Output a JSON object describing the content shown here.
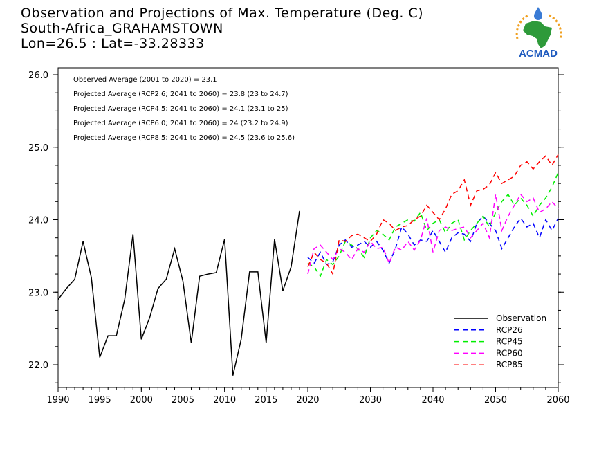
{
  "title": {
    "line1": "Observation and Projections of Max. Temperature (Deg. C)",
    "line2": "South-Africa_GRAHAMSTOWN",
    "line3": "Lon=26.5 : Lat=-33.28333"
  },
  "logo": {
    "text": "ACMAD",
    "colors": {
      "africa": "#2e9a3a",
      "sun": "#f0a020",
      "drop": "#3a7bd5",
      "text": "#1f5bbf"
    }
  },
  "averages": [
    "Observed Average (2001 to 2020) = 23.1",
    "Projected Average (RCP2.6; 2041 to 2060) = 23.8 (23 to 24.7)",
    "Projected Average (RCP4.5; 2041 to 2060) = 24.1 (23.1 to 25)",
    "Projected Average (RCP6.0; 2041 to 2060) = 24 (23.2 to 24.9)",
    "Projected Average (RCP8.5; 2041 to 2060) = 24.5 (23.6 to 25.6)"
  ],
  "chart_data": {
    "type": "line",
    "title": "Observation and Projections of Max. Temperature (Deg. C)",
    "xlabel": "",
    "ylabel": "",
    "xlim": [
      1990,
      2060
    ],
    "ylim": [
      21.7,
      26.1
    ],
    "x_ticks": [
      "1990",
      "1995",
      "2000",
      "2005",
      "2010",
      "2015",
      "2020",
      "2030",
      "2040",
      "2050",
      "2060"
    ],
    "y_ticks": [
      "22.0",
      "23.0",
      "24.0",
      "25.0",
      "26.0"
    ],
    "legend_position": "bottom-right",
    "grid": false,
    "series": [
      {
        "name": "Observation",
        "color": "#000000",
        "dashed": false,
        "x": [
          1990,
          1991,
          1992,
          1993,
          1994,
          1995,
          1996,
          1997,
          1998,
          1999,
          2000,
          2001,
          2002,
          2003,
          2004,
          2005,
          2006,
          2007,
          2008,
          2009,
          2010,
          2011,
          2012,
          2013,
          2014,
          2015,
          2016,
          2017,
          2018,
          2019
        ],
        "y": [
          22.9,
          23.05,
          23.18,
          23.7,
          23.2,
          22.1,
          22.4,
          22.4,
          22.9,
          23.8,
          22.35,
          22.65,
          23.05,
          23.18,
          23.6,
          23.15,
          22.3,
          23.22,
          23.25,
          23.27,
          23.73,
          21.85,
          22.35,
          23.28,
          23.28,
          22.3,
          23.73,
          23.02,
          23.35,
          24.12
        ]
      },
      {
        "name": "RCP26",
        "color": "#0000ff",
        "dashed": true,
        "x": [
          2020,
          2021,
          2022,
          2023,
          2024,
          2025,
          2026,
          2027,
          2028,
          2029,
          2030,
          2031,
          2032,
          2033,
          2034,
          2035,
          2036,
          2037,
          2038,
          2039,
          2040,
          2041,
          2042,
          2043,
          2044,
          2045,
          2046,
          2047,
          2048,
          2049,
          2050,
          2051,
          2052,
          2053,
          2054,
          2055,
          2056,
          2057,
          2058,
          2059,
          2060
        ],
        "y": [
          23.48,
          23.4,
          23.55,
          23.38,
          23.42,
          23.65,
          23.72,
          23.62,
          23.65,
          23.7,
          23.62,
          23.7,
          23.58,
          23.4,
          23.6,
          23.9,
          23.8,
          23.65,
          23.72,
          23.7,
          23.85,
          23.7,
          23.55,
          23.75,
          23.82,
          23.8,
          23.7,
          23.95,
          24.05,
          23.95,
          23.85,
          23.6,
          23.75,
          23.9,
          24.02,
          23.9,
          23.95,
          23.75,
          24.0,
          23.85,
          24.02
        ]
      },
      {
        "name": "RCP45",
        "color": "#00ee00",
        "dashed": true,
        "x": [
          2020,
          2021,
          2022,
          2023,
          2024,
          2025,
          2026,
          2027,
          2028,
          2029,
          2030,
          2031,
          2032,
          2033,
          2034,
          2035,
          2036,
          2037,
          2038,
          2039,
          2040,
          2041,
          2042,
          2043,
          2044,
          2045,
          2046,
          2047,
          2048,
          2049,
          2050,
          2051,
          2052,
          2053,
          2054,
          2055,
          2056,
          2057,
          2058,
          2059,
          2060
        ],
        "y": [
          23.4,
          23.35,
          23.22,
          23.45,
          23.38,
          23.5,
          23.7,
          23.65,
          23.6,
          23.48,
          23.75,
          23.85,
          23.8,
          23.72,
          23.9,
          23.95,
          24.0,
          23.98,
          24.1,
          23.85,
          23.95,
          24.0,
          23.82,
          23.95,
          24.0,
          23.72,
          23.85,
          23.95,
          24.05,
          23.9,
          24.1,
          24.25,
          24.35,
          24.2,
          24.3,
          24.2,
          24.05,
          24.2,
          24.3,
          24.45,
          24.65
        ]
      },
      {
        "name": "RCP60",
        "color": "#ff00ff",
        "dashed": true,
        "x": [
          2020,
          2021,
          2022,
          2023,
          2024,
          2025,
          2026,
          2027,
          2028,
          2029,
          2030,
          2031,
          2032,
          2033,
          2034,
          2035,
          2036,
          2037,
          2038,
          2039,
          2040,
          2041,
          2042,
          2043,
          2044,
          2045,
          2046,
          2047,
          2048,
          2049,
          2050,
          2051,
          2052,
          2053,
          2054,
          2055,
          2056,
          2057,
          2058,
          2059,
          2060
        ],
        "y": [
          23.25,
          23.6,
          23.65,
          23.55,
          23.45,
          23.6,
          23.55,
          23.45,
          23.6,
          23.55,
          23.7,
          23.6,
          23.62,
          23.4,
          23.62,
          23.58,
          23.7,
          23.58,
          23.72,
          24.02,
          23.55,
          23.85,
          23.9,
          23.85,
          23.88,
          23.9,
          23.75,
          23.85,
          23.95,
          23.75,
          24.35,
          23.85,
          24.05,
          24.2,
          24.35,
          24.25,
          24.3,
          24.1,
          24.15,
          24.25,
          24.15
        ]
      },
      {
        "name": "RCP85",
        "color": "#ff0000",
        "dashed": true,
        "x": [
          2020,
          2021,
          2022,
          2023,
          2024,
          2025,
          2026,
          2027,
          2028,
          2029,
          2030,
          2031,
          2032,
          2033,
          2034,
          2035,
          2036,
          2037,
          2038,
          2039,
          2040,
          2041,
          2042,
          2043,
          2044,
          2045,
          2046,
          2047,
          2048,
          2049,
          2050,
          2051,
          2052,
          2053,
          2054,
          2055,
          2056,
          2057,
          2058,
          2059,
          2060
        ],
        "y": [
          23.35,
          23.55,
          23.45,
          23.4,
          23.25,
          23.72,
          23.7,
          23.78,
          23.8,
          23.75,
          23.7,
          23.8,
          24.0,
          23.95,
          23.85,
          23.9,
          23.92,
          24.0,
          24.05,
          24.2,
          24.1,
          24.0,
          24.15,
          24.35,
          24.4,
          24.55,
          24.2,
          24.4,
          24.42,
          24.48,
          24.65,
          24.5,
          24.55,
          24.6,
          24.75,
          24.8,
          24.7,
          24.8,
          24.88,
          24.75,
          24.9
        ]
      }
    ]
  }
}
